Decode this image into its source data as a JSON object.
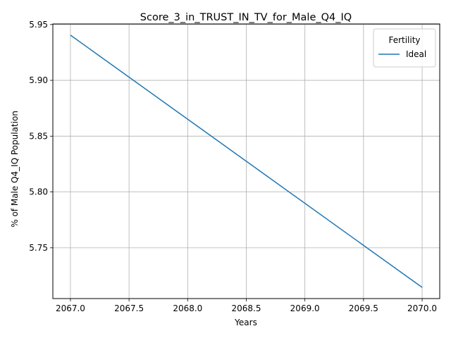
{
  "chart_data": {
    "type": "line",
    "title": "Score_3_in_TRUST_IN_TV_for_Male_Q4_IQ",
    "xlabel": "Years",
    "ylabel": "% of Male Q4_IQ Population",
    "xlim": [
      2066.85,
      2070.15
    ],
    "ylim": [
      5.7045,
      5.9505
    ],
    "xticks": [
      2067.0,
      2067.5,
      2068.0,
      2068.5,
      2069.0,
      2069.5,
      2070.0
    ],
    "xtick_labels": [
      "2067.0",
      "2067.5",
      "2068.0",
      "2068.5",
      "2069.0",
      "2069.5",
      "2070.0"
    ],
    "yticks": [
      5.75,
      5.8,
      5.85,
      5.9,
      5.95
    ],
    "ytick_labels": [
      "5.75",
      "5.80",
      "5.85",
      "5.90",
      "5.95"
    ],
    "grid": true,
    "legend": {
      "title": "Fertility",
      "placement": "upper-right"
    },
    "series": [
      {
        "name": "Ideal",
        "color": "#1f77b4",
        "x": [
          2067,
          2070
        ],
        "y": [
          5.9405,
          5.7145
        ]
      }
    ]
  }
}
